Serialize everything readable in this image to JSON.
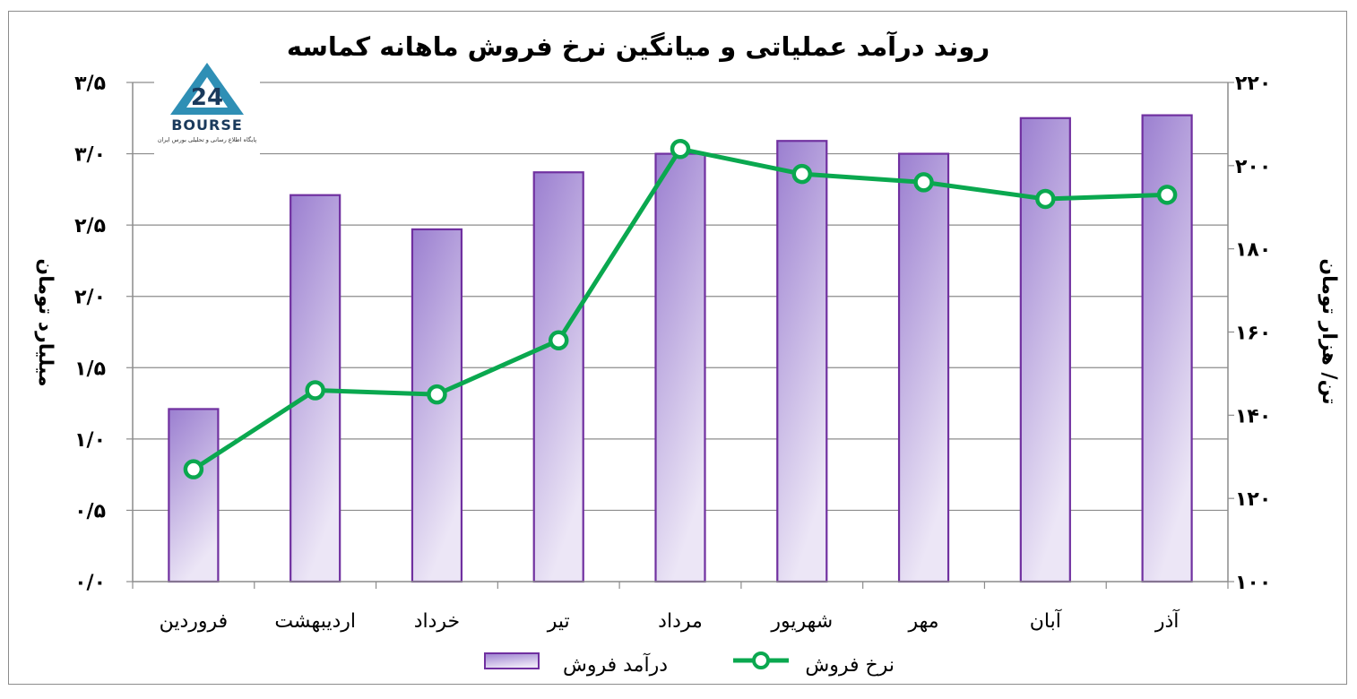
{
  "chart_data": {
    "type": "bar",
    "title": "روند درآمد عملیاتی و میانگین نرخ فروش ماهانه کماسه",
    "categories": [
      "فروردین",
      "اردیبهشت",
      "خرداد",
      "تیر",
      "مرداد",
      "شهریور",
      "مهر",
      "آبان",
      "آذر"
    ],
    "series": [
      {
        "name": "درآمد فروش",
        "type": "bar",
        "axis": "left",
        "values": [
          1.21,
          2.71,
          2.47,
          2.87,
          3.0,
          3.09,
          3.0,
          3.25,
          3.27
        ],
        "color": "#9b7fd0",
        "border": "#7030a0"
      },
      {
        "name": "نرخ فروش",
        "type": "line",
        "axis": "right",
        "values": [
          127,
          146,
          145,
          158,
          204,
          198,
          196,
          192,
          193
        ],
        "color": "#0aa84f"
      }
    ],
    "yleft": {
      "label": "میلیارد تومان",
      "ylim": [
        0,
        3.5
      ],
      "ticks": [
        "۰/۰",
        "۰/۵",
        "۱/۰",
        "۱/۵",
        "۲/۰",
        "۲/۵",
        "۳/۰",
        "۳/۵"
      ]
    },
    "yright": {
      "label": "تن/ هزار تومان",
      "ylim": [
        100,
        220
      ],
      "ticks": [
        "۱۰۰",
        "۱۲۰",
        "۱۴۰",
        "۱۶۰",
        "۱۸۰",
        "۲۰۰",
        "۲۲۰"
      ]
    },
    "grid": true,
    "legend": "bottom"
  },
  "logo": {
    "brand": "BOURSE",
    "tagline": "پایگاه اطلاع رسانی و تحلیلی بورس ایران"
  }
}
